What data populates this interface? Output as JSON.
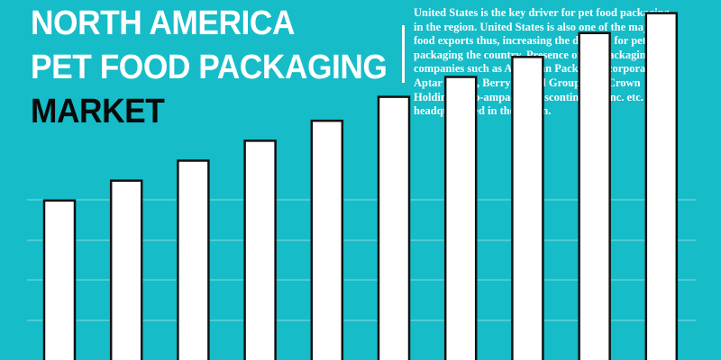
{
  "title": {
    "line1": "NORTH AMERICA",
    "line2": "PET FOOD PACKAGING",
    "line3": "MARKET"
  },
  "description": "United States is the key driver for pet food packaging in the region. United States is also one of the major pet food exports thus, increasing the demand for pet food packaging the country. Presence of top packaging companies such as American Packaging corporation, Aptar Group, Berry Global Group Inc., Crown Holdings, Pro-ampac, Transcontinental Inc. etc. are headquartered in the region.",
  "colors": {
    "background": "#16bcc8",
    "bar_fill": "#ffffff",
    "bar_stroke": "#111111",
    "gridline": "#7fdbe2",
    "title_accent": "#0a0a0a"
  },
  "chart_data": {
    "type": "bar",
    "title": "",
    "xlabel": "",
    "ylabel": "",
    "categories": [
      "",
      "",
      "",
      "",
      "",
      "",
      "",
      "",
      "",
      ""
    ],
    "values": [
      40,
      45,
      50,
      55,
      60,
      66,
      71,
      76,
      82,
      87
    ],
    "ylim": [
      0,
      100
    ],
    "grid": true
  }
}
